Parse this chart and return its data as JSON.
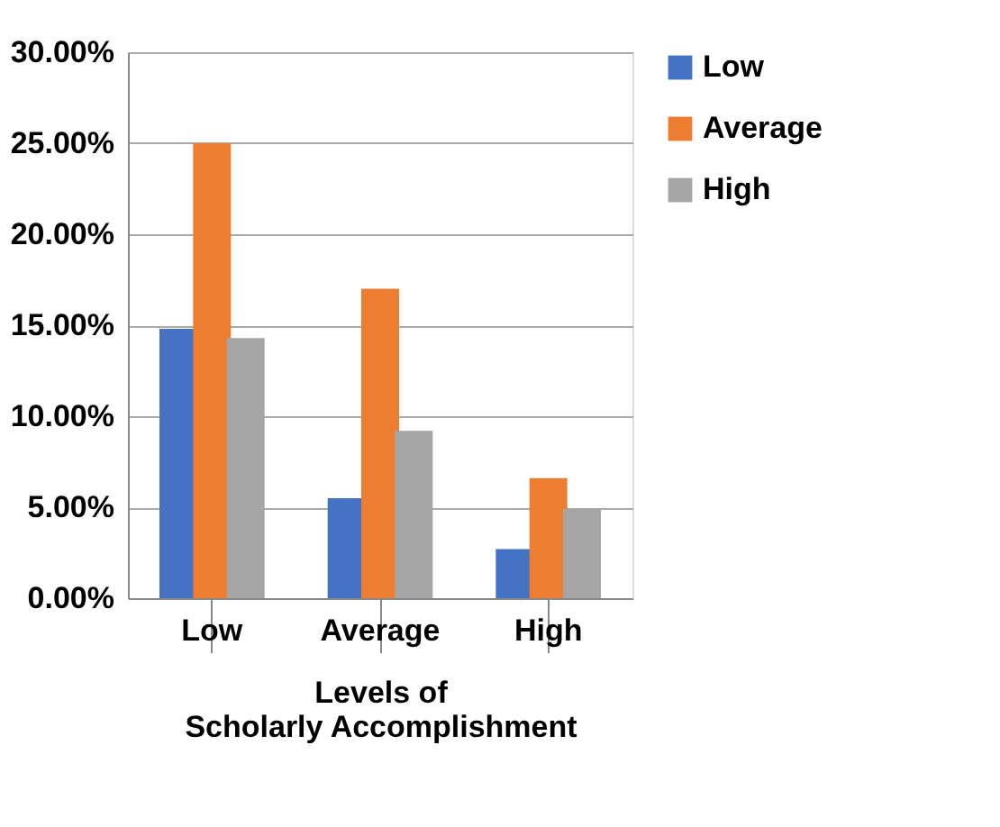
{
  "chart_data": {
    "type": "bar",
    "xlabel": "Levels of Scholarly Accomplishment",
    "categories": [
      "Low",
      "Average",
      "High"
    ],
    "series": [
      {
        "name": "Low",
        "color": "#4472c4",
        "values": [
          14.8,
          5.5,
          2.7
        ]
      },
      {
        "name": "Average",
        "color": "#ed7d31",
        "values": [
          25.0,
          17.0,
          6.6
        ]
      },
      {
        "name": "High",
        "color": "#a5a5a5",
        "values": [
          14.3,
          9.2,
          4.9
        ]
      }
    ],
    "ylim": [
      0,
      30
    ],
    "yticks": [
      {
        "value": 0,
        "label": "0.00%"
      },
      {
        "value": 5,
        "label": "5.00%"
      },
      {
        "value": 10,
        "label": "10.00%"
      },
      {
        "value": 15,
        "label": "15.00%"
      },
      {
        "value": 20,
        "label": "20.00%"
      },
      {
        "value": 25,
        "label": "25.00%"
      },
      {
        "value": 30,
        "label": "30.00%"
      }
    ],
    "grid": "y",
    "legend": "right"
  }
}
